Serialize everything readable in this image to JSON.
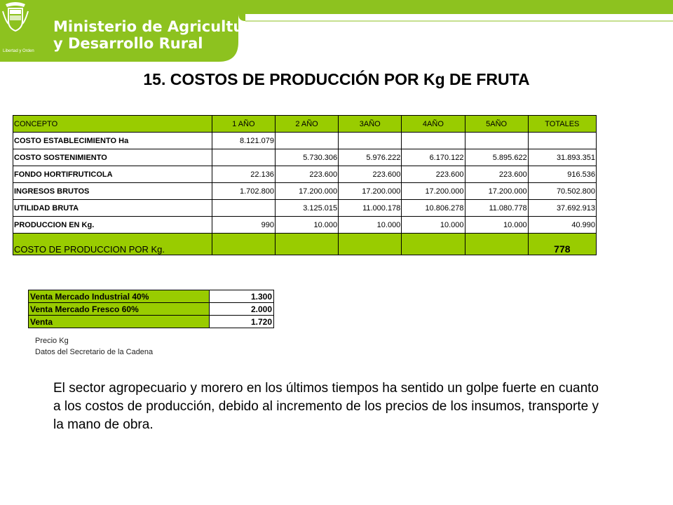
{
  "header": {
    "ministry_line1": "Ministerio de Agricultura",
    "ministry_line2": "y Desarrollo Rural",
    "crest_motto": "Libertad y Orden",
    "brand_color": "#8dc21f",
    "crest_icon": "colombia-crest-icon"
  },
  "title": "15. COSTOS DE PRODUCCIÓN POR Kg DE FRUTA",
  "costs_table": {
    "headers": [
      "CONCEPTO",
      "1 AÑO",
      "2 AÑO",
      "3AÑO",
      "4AÑO",
      "5AÑO",
      "TOTALES"
    ],
    "rows": [
      [
        "COSTO ESTABLECIMIENTO Ha",
        "8.121.079",
        "",
        "",
        "",
        "",
        ""
      ],
      [
        "COSTO SOSTENIMIENTO",
        "",
        "5.730.306",
        "5.976.222",
        "6.170.122",
        "5.895.622",
        "31.893.351"
      ],
      [
        "FONDO HORTIFRUTICOLA",
        "22.136",
        "223.600",
        "223.600",
        "223.600",
        "223.600",
        "916.536"
      ],
      [
        "INGRESOS BRUTOS",
        "1.702.800",
        "17.200.000",
        "17.200.000",
        "17.200.000",
        "17.200.000",
        "70.502.800"
      ],
      [
        "UTILIDAD BRUTA",
        "",
        "3.125.015",
        "11.000.178",
        "10.806.278",
        "11.080.778",
        "37.692.913"
      ],
      [
        "PRODUCCION  EN Kg.",
        "990",
        "10.000",
        "10.000",
        "10.000",
        "10.000",
        "40.990"
      ]
    ],
    "last_row": [
      "COSTO DE PRODUCCION POR Kg.",
      "",
      "",
      "",
      "",
      "",
      "778"
    ],
    "header_color": "#99cc00"
  },
  "sales_table": [
    {
      "label": "Venta   Mercado Industrial    40%",
      "value": "1.300"
    },
    {
      "label": "Venta   Mercado Fresco       60%",
      "value": "2.000"
    },
    {
      "label": "Venta",
      "value": "1.720"
    }
  ],
  "notes": [
    "Precio Kg",
    "Datos del Secretario de la Cadena"
  ],
  "paragraph": "El sector agropecuario y morero en los últimos tiempos ha sentido un golpe fuerte en cuanto a los costos de producción, debido al incremento de los precios de los insumos, transporte  y la mano de obra."
}
